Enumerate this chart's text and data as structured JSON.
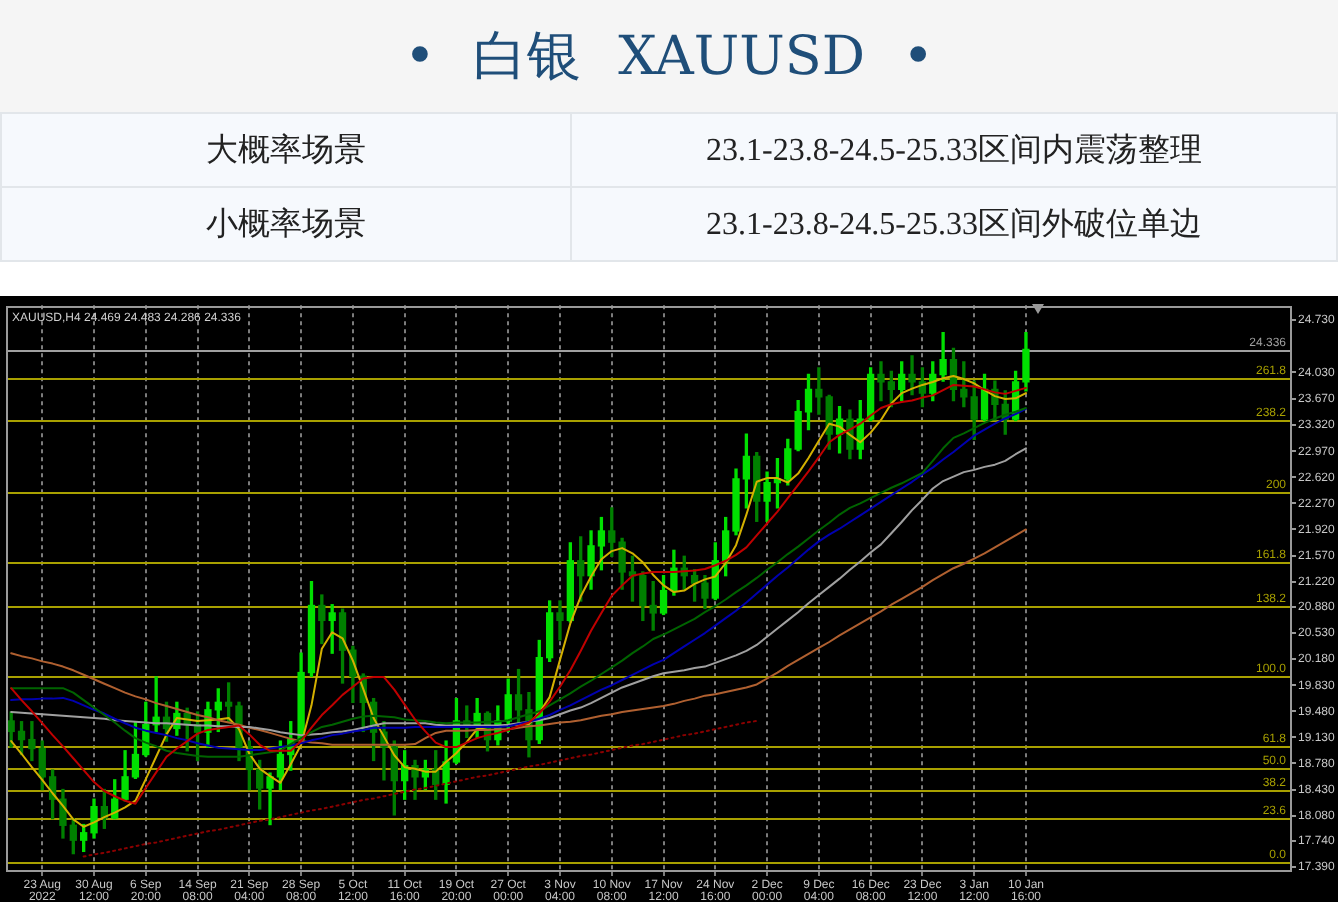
{
  "chart_data": [
    {
      "type": "other",
      "title": "• 白银 XAUUSD •",
      "annotations": [
        "大概率场景",
        "23.1-23.8-24.5-25.33区间内震荡整理",
        "小概率场景",
        "23.1-23.8-24.5-25.33区间外破位单边"
      ]
    },
    {
      "type": "candlestick",
      "categories": [
        null,
        null,
        null,
        "23 Aug 2022",
        null,
        null,
        null,
        null,
        "30 Aug 12:00",
        null,
        null,
        null,
        null,
        "6 Sep 20:00",
        null,
        null,
        null,
        null,
        "14 Sep 08:00",
        null,
        null,
        null,
        null,
        "21 Sep 04:00",
        null,
        null,
        null,
        null,
        "28 Sep 08:00",
        null,
        null,
        null,
        null,
        "5 Oct 12:00",
        null,
        null,
        null,
        null,
        "11 Oct 16:00",
        null,
        null,
        null,
        null,
        "19 Oct 20:00",
        null,
        null,
        null,
        null,
        "27 Oct 00:00",
        null,
        null,
        null,
        null,
        "3 Nov 04:00",
        null,
        null,
        null,
        null,
        "10 Nov 08:00",
        null,
        null,
        null,
        null,
        "17 Nov 12:00",
        null,
        null,
        null,
        null,
        "24 Nov 16:00",
        null,
        null,
        null,
        null,
        "2 Dec 00:00",
        null,
        null,
        null,
        null,
        "9 Dec 04:00",
        null,
        null,
        null,
        null,
        "16 Dec 08:00",
        null,
        null,
        null,
        null,
        "23 Dec 12:00",
        null,
        null,
        null,
        null,
        "3 Jan 12:00",
        null,
        null,
        null,
        null,
        "10 Jan 16:00",
        null,
        null,
        null,
        null,
        null,
        null,
        null,
        null,
        null,
        null,
        null,
        null,
        null,
        null,
        null,
        null,
        null,
        null,
        null,
        null,
        null,
        null,
        null,
        null,
        null
      ],
      "ohlc": [
        [
          19.35,
          19.47,
          19.0,
          19.21
        ],
        [
          19.21,
          19.34,
          18.9,
          19.1
        ],
        [
          19.1,
          19.34,
          18.82,
          18.98
        ],
        [
          18.98,
          19.08,
          18.43,
          18.6
        ],
        [
          18.6,
          18.69,
          18.04,
          18.3
        ],
        [
          18.3,
          18.43,
          17.78,
          17.95
        ],
        [
          17.95,
          18.04,
          17.57,
          17.75
        ],
        [
          17.75,
          17.96,
          17.6,
          17.85
        ],
        [
          17.85,
          18.3,
          17.78,
          18.2
        ],
        [
          18.2,
          18.43,
          17.91,
          18.05
        ],
        [
          18.05,
          18.56,
          18.04,
          18.3
        ],
        [
          18.3,
          18.95,
          18.28,
          18.6
        ],
        [
          18.6,
          19.34,
          18.58,
          18.9
        ],
        [
          18.9,
          19.6,
          18.88,
          19.3
        ],
        [
          19.3,
          19.94,
          19.21,
          19.4
        ],
        [
          19.4,
          19.6,
          19.08,
          19.25
        ],
        [
          19.25,
          19.6,
          19.16,
          19.45
        ],
        [
          19.45,
          19.52,
          18.95,
          19.3
        ],
        [
          19.3,
          19.47,
          18.82,
          19.2
        ],
        [
          19.2,
          19.6,
          19.0,
          19.5
        ],
        [
          19.5,
          19.78,
          19.21,
          19.6
        ],
        [
          19.6,
          19.86,
          19.34,
          19.55
        ],
        [
          19.55,
          19.6,
          18.82,
          19.0
        ],
        [
          19.0,
          19.08,
          18.43,
          18.7
        ],
        [
          18.7,
          18.82,
          18.17,
          18.45
        ],
        [
          18.45,
          18.65,
          17.96,
          18.6
        ],
        [
          18.6,
          19.08,
          18.43,
          18.9
        ],
        [
          18.9,
          19.34,
          18.69,
          19.1
        ],
        [
          19.1,
          20.26,
          19.08,
          20.0
        ],
        [
          20.0,
          21.22,
          19.95,
          20.9
        ],
        [
          20.9,
          21.04,
          20.39,
          20.7
        ],
        [
          20.7,
          20.91,
          20.26,
          20.8
        ],
        [
          20.8,
          20.85,
          19.86,
          20.3
        ],
        [
          20.3,
          20.35,
          19.6,
          19.95
        ],
        [
          19.95,
          19.98,
          19.21,
          19.6
        ],
        [
          19.6,
          19.65,
          18.82,
          19.2
        ],
        [
          19.2,
          19.34,
          18.56,
          19.0
        ],
        [
          19.0,
          19.08,
          18.09,
          18.55
        ],
        [
          18.55,
          18.95,
          18.3,
          18.75
        ],
        [
          18.75,
          18.82,
          18.3,
          18.6
        ],
        [
          18.6,
          18.82,
          18.43,
          18.7
        ],
        [
          18.7,
          18.95,
          18.3,
          18.5
        ],
        [
          18.5,
          19.08,
          18.25,
          18.8
        ],
        [
          18.8,
          19.65,
          18.78,
          19.35
        ],
        [
          19.35,
          19.55,
          19.13,
          19.3
        ],
        [
          19.3,
          19.65,
          19.13,
          19.45
        ],
        [
          19.45,
          19.47,
          18.95,
          19.1
        ],
        [
          19.1,
          19.55,
          19.03,
          19.35
        ],
        [
          19.35,
          19.91,
          19.21,
          19.7
        ],
        [
          19.7,
          20.04,
          19.29,
          19.5
        ],
        [
          19.5,
          19.73,
          18.87,
          19.1
        ],
        [
          19.1,
          20.43,
          19.05,
          20.2
        ],
        [
          20.2,
          20.96,
          20.15,
          20.8
        ],
        [
          20.8,
          20.96,
          20.44,
          20.7
        ],
        [
          20.7,
          21.74,
          20.68,
          21.5
        ],
        [
          21.5,
          21.82,
          20.96,
          21.3
        ],
        [
          21.3,
          21.9,
          21.12,
          21.7
        ],
        [
          21.7,
          22.08,
          21.38,
          21.9
        ],
        [
          21.9,
          22.21,
          21.56,
          21.75
        ],
        [
          21.75,
          21.8,
          21.12,
          21.35
        ],
        [
          21.35,
          21.56,
          20.96,
          21.3
        ],
        [
          21.3,
          21.35,
          20.7,
          20.9
        ],
        [
          20.9,
          21.22,
          20.57,
          20.8
        ],
        [
          20.8,
          21.3,
          20.78,
          21.1
        ],
        [
          21.1,
          21.64,
          21.04,
          21.4
        ],
        [
          21.4,
          21.56,
          21.12,
          21.3
        ],
        [
          21.3,
          21.38,
          20.96,
          21.2
        ],
        [
          21.2,
          21.3,
          20.86,
          21.0
        ],
        [
          21.0,
          21.74,
          20.98,
          21.5
        ],
        [
          21.5,
          22.08,
          21.3,
          21.9
        ],
        [
          21.9,
          22.73,
          21.85,
          22.6
        ],
        [
          22.6,
          23.2,
          22.21,
          22.9
        ],
        [
          22.9,
          22.95,
          22.03,
          22.3
        ],
        [
          22.3,
          22.69,
          22.03,
          22.55
        ],
        [
          22.55,
          22.87,
          22.21,
          22.6
        ],
        [
          22.6,
          23.13,
          22.52,
          23.0
        ],
        [
          23.0,
          23.65,
          22.98,
          23.5
        ],
        [
          23.5,
          24.0,
          23.26,
          23.8
        ],
        [
          23.8,
          24.09,
          23.47,
          23.7
        ],
        [
          23.7,
          23.72,
          23.0,
          23.2
        ],
        [
          23.2,
          23.57,
          22.95,
          23.4
        ],
        [
          23.4,
          23.52,
          22.87,
          23.0
        ],
        [
          23.0,
          23.65,
          22.87,
          23.4
        ],
        [
          23.4,
          24.09,
          23.38,
          24.0
        ],
        [
          24.0,
          24.17,
          23.65,
          23.9
        ],
        [
          23.9,
          24.04,
          23.57,
          23.8
        ],
        [
          23.8,
          24.17,
          23.65,
          24.0
        ],
        [
          24.0,
          24.25,
          23.73,
          23.9
        ],
        [
          23.9,
          24.09,
          23.57,
          23.75
        ],
        [
          23.75,
          24.17,
          23.65,
          24.0
        ],
        [
          24.0,
          24.56,
          23.91,
          24.2
        ],
        [
          24.2,
          24.35,
          23.65,
          23.8
        ],
        [
          23.8,
          24.17,
          23.57,
          23.7
        ],
        [
          23.7,
          23.91,
          23.13,
          23.4
        ],
        [
          23.4,
          24.0,
          23.38,
          23.8
        ],
        [
          23.8,
          23.91,
          23.39,
          23.6
        ],
        [
          23.6,
          23.78,
          23.2,
          23.4
        ],
        [
          23.4,
          24.04,
          23.38,
          23.9
        ],
        [
          23.9,
          24.56,
          23.78,
          24.336
        ],
        null,
        null,
        null,
        null,
        null,
        null,
        null,
        null,
        null,
        null,
        null,
        null,
        null,
        null,
        null,
        null,
        null,
        null,
        null,
        null,
        null,
        null,
        null,
        null,
        null
      ],
      "colors": [
        "#008000",
        "#008000",
        "#008000",
        "#008000",
        "#008000",
        "#008000",
        "#008000",
        "#00e000",
        "#00e000",
        "#008000",
        "#00e000",
        "#00e000",
        "#00e000",
        "#00e000",
        "#00e000",
        "#008000",
        "#00e000",
        "#008000",
        "#008000",
        "#00e000",
        "#00e000",
        "#008000",
        "#008000",
        "#008000",
        "#008000",
        "#00e000",
        "#00e000",
        "#00e000",
        "#00e000",
        "#00e000",
        "#008000",
        "#00e000",
        "#008000",
        "#008000",
        "#008000",
        "#008000",
        "#008000",
        "#008000",
        "#00e000",
        "#008000",
        "#00e000",
        "#008000",
        "#00e000",
        "#00e000",
        "#008000",
        "#00e000",
        "#008000",
        "#00e000",
        "#00e000",
        "#008000",
        "#008000",
        "#00e000",
        "#00e000",
        "#008000",
        "#00e000",
        "#008000",
        "#00e000",
        "#00e000",
        "#008000",
        "#008000",
        "#008000",
        "#008000",
        "#008000",
        "#00e000",
        "#00e000",
        "#008000",
        "#008000",
        "#008000",
        "#00e000",
        "#00e000",
        "#00e000",
        "#00e000",
        "#008000",
        "#00e000",
        "#00e000",
        "#00e000",
        "#00e000",
        "#00e000",
        "#008000",
        "#008000",
        "#00e000",
        "#008000",
        "#00e000",
        "#00e000",
        "#008000",
        "#008000",
        "#00e000",
        "#008000",
        "#008000",
        "#00e000",
        "#00e000",
        "#008000",
        "#008000",
        "#008000",
        "#00e000",
        "#008000",
        "#008000",
        "#00e000",
        "#00e000",
        null,
        null,
        null,
        null,
        null,
        null,
        null,
        null,
        null,
        null,
        null,
        null,
        null,
        null,
        null,
        null,
        null,
        null,
        null,
        null,
        null,
        null,
        null,
        null,
        null
      ],
      "series": [
        {
          "type": "line",
          "color": "#c00000",
          "values": [
            19.79,
            19.63,
            19.48,
            19.32,
            19.16,
            19.01,
            18.85,
            18.69,
            18.53,
            18.41,
            18.34,
            18.28,
            18.24,
            18.45,
            18.66,
            18.87,
            18.98,
            19.08,
            19.18,
            19.23,
            19.25,
            19.27,
            19.29,
            19.17,
            19.03,
            18.95,
            18.95,
            18.95,
            19.08,
            19.26,
            19.43,
            19.56,
            19.7,
            19.81,
            19.92,
            19.94,
            19.94,
            19.77,
            19.57,
            19.37,
            19.21,
            19.06,
            19.0,
            19.0,
            19.06,
            19.12,
            19.16,
            19.19,
            19.23,
            19.28,
            19.33,
            19.45,
            19.61,
            19.81,
            20.03,
            20.29,
            20.56,
            20.8,
            21.03,
            21.17,
            21.3,
            21.33,
            21.35,
            21.35,
            21.35,
            21.36,
            21.37,
            21.39,
            21.44,
            21.5,
            21.58,
            21.68,
            21.84,
            22.0,
            22.16,
            22.34,
            22.52,
            22.7,
            22.89,
            23.09,
            23.19,
            23.26,
            23.34,
            23.45,
            23.55,
            23.6,
            23.63,
            23.65,
            23.69,
            23.72,
            23.79,
            23.86,
            23.85,
            23.84,
            23.8,
            23.76,
            23.74,
            23.78,
            23.82,
            null,
            null,
            null,
            null,
            null,
            null,
            null,
            null,
            null,
            null,
            null,
            null,
            null,
            null,
            null,
            null,
            null,
            null,
            null,
            null,
            null,
            null,
            null,
            null,
            null
          ]
        },
        {
          "type": "line",
          "color": "#006400",
          "values": [
            19.79,
            19.79,
            19.79,
            19.79,
            19.79,
            19.79,
            19.73,
            19.63,
            19.53,
            19.43,
            19.33,
            19.22,
            19.12,
            19.06,
            19.01,
            18.95,
            18.92,
            18.9,
            18.88,
            18.87,
            18.87,
            18.87,
            18.87,
            18.89,
            18.91,
            18.93,
            18.95,
            19.04,
            19.12,
            19.2,
            19.27,
            19.3,
            19.34,
            19.38,
            19.41,
            19.42,
            19.41,
            19.4,
            19.37,
            19.36,
            19.35,
            19.33,
            19.32,
            19.33,
            19.33,
            19.33,
            19.34,
            19.34,
            19.36,
            19.4,
            19.44,
            19.48,
            19.56,
            19.64,
            19.72,
            19.81,
            19.89,
            19.98,
            20.07,
            20.16,
            20.26,
            20.35,
            20.45,
            20.51,
            20.58,
            20.65,
            20.72,
            20.81,
            20.89,
            20.98,
            21.08,
            21.17,
            21.27,
            21.38,
            21.48,
            21.59,
            21.69,
            21.8,
            21.91,
            22.01,
            22.12,
            22.21,
            22.27,
            22.34,
            22.41,
            22.48,
            22.54,
            22.61,
            22.68,
            22.84,
            23.01,
            23.15,
            23.21,
            23.28,
            23.35,
            23.41,
            23.46,
            23.5,
            23.55,
            null,
            null,
            null,
            null,
            null,
            null,
            null,
            null,
            null,
            null,
            null,
            null,
            null,
            null,
            null,
            null,
            null,
            null,
            null,
            null,
            null,
            null,
            null,
            null,
            null
          ]
        },
        {
          "type": "line",
          "color": "#0000b0",
          "values": [
            19.63,
            19.64,
            19.64,
            19.65,
            19.65,
            19.66,
            19.62,
            19.56,
            19.5,
            19.45,
            19.38,
            19.32,
            19.26,
            19.22,
            19.19,
            19.16,
            19.12,
            19.09,
            19.05,
            19.02,
            18.99,
            18.98,
            18.97,
            18.96,
            18.96,
            18.98,
            19.0,
            19.02,
            19.05,
            19.09,
            19.12,
            19.16,
            19.18,
            19.21,
            19.23,
            19.26,
            19.26,
            19.26,
            19.26,
            19.27,
            19.27,
            19.27,
            19.27,
            19.27,
            19.27,
            19.27,
            19.27,
            19.27,
            19.28,
            19.31,
            19.34,
            19.38,
            19.43,
            19.5,
            19.56,
            19.63,
            19.7,
            19.77,
            19.83,
            19.9,
            19.97,
            20.04,
            20.11,
            20.17,
            20.26,
            20.35,
            20.44,
            20.53,
            20.63,
            20.73,
            20.83,
            20.94,
            21.06,
            21.18,
            21.3,
            21.41,
            21.53,
            21.65,
            21.76,
            21.85,
            21.93,
            22.02,
            22.11,
            22.2,
            22.29,
            22.38,
            22.47,
            22.56,
            22.66,
            22.75,
            22.86,
            22.96,
            23.07,
            23.18,
            23.26,
            23.34,
            23.41,
            23.47,
            23.54,
            null,
            null,
            null,
            null,
            null,
            null,
            null,
            null,
            null,
            null,
            null,
            null,
            null,
            null,
            null,
            null,
            null,
            null,
            null,
            null,
            null,
            null,
            null,
            null,
            null
          ]
        },
        {
          "type": "line",
          "color": "#a0a0a0",
          "values": [
            19.47,
            19.46,
            19.45,
            19.44,
            19.43,
            19.42,
            19.41,
            19.4,
            19.39,
            19.38,
            19.36,
            19.35,
            19.34,
            19.33,
            19.32,
            19.32,
            19.31,
            19.3,
            19.29,
            19.29,
            19.28,
            19.28,
            19.27,
            19.27,
            19.25,
            19.23,
            19.2,
            19.18,
            19.16,
            19.17,
            19.18,
            19.2,
            19.21,
            19.23,
            19.26,
            19.29,
            19.32,
            19.32,
            19.32,
            19.32,
            19.32,
            19.3,
            19.29,
            19.29,
            19.29,
            19.29,
            19.29,
            19.29,
            19.3,
            19.32,
            19.34,
            19.36,
            19.39,
            19.44,
            19.49,
            19.53,
            19.59,
            19.66,
            19.73,
            19.8,
            19.85,
            19.9,
            19.95,
            19.99,
            20.01,
            20.03,
            20.06,
            20.08,
            20.13,
            20.18,
            20.23,
            20.29,
            20.37,
            20.48,
            20.59,
            20.7,
            20.81,
            20.93,
            21.04,
            21.15,
            21.26,
            21.38,
            21.49,
            21.61,
            21.72,
            21.87,
            22.02,
            22.18,
            22.32,
            22.47,
            22.57,
            22.63,
            22.69,
            22.72,
            22.76,
            22.79,
            22.84,
            22.93,
            23.01,
            null,
            null,
            null,
            null,
            null,
            null,
            null,
            null,
            null,
            null,
            null,
            null,
            null,
            null,
            null,
            null,
            null,
            null,
            null,
            null,
            null,
            null,
            null,
            null,
            null
          ]
        },
        {
          "type": "line",
          "color": "#b06030",
          "values": [
            20.26,
            20.22,
            20.19,
            20.15,
            20.12,
            20.08,
            20.03,
            19.97,
            19.91,
            19.85,
            19.79,
            19.73,
            19.68,
            19.64,
            19.59,
            19.55,
            19.51,
            19.47,
            19.43,
            19.4,
            19.36,
            19.33,
            19.3,
            19.26,
            19.23,
            19.19,
            19.15,
            19.11,
            19.08,
            19.06,
            19.05,
            19.03,
            19.03,
            19.03,
            19.03,
            19.03,
            19.03,
            19.03,
            19.03,
            19.04,
            19.12,
            19.19,
            19.22,
            19.22,
            19.22,
            19.23,
            19.23,
            19.24,
            19.24,
            19.26,
            19.28,
            19.29,
            19.31,
            19.33,
            19.34,
            19.36,
            19.39,
            19.42,
            19.44,
            19.47,
            19.49,
            19.51,
            19.53,
            19.55,
            19.58,
            19.62,
            19.65,
            19.69,
            19.71,
            19.74,
            19.77,
            19.8,
            19.84,
            19.92,
            20.0,
            20.09,
            20.17,
            20.25,
            20.33,
            20.41,
            20.5,
            20.58,
            20.66,
            20.74,
            20.82,
            20.91,
            20.99,
            21.07,
            21.15,
            21.24,
            21.32,
            21.4,
            21.46,
            21.53,
            21.6,
            21.68,
            21.76,
            21.84,
            21.92,
            null,
            null,
            null,
            null,
            null,
            null,
            null,
            null,
            null,
            null,
            null,
            null,
            null,
            null,
            null,
            null,
            null,
            null,
            null,
            null,
            null,
            null,
            null,
            null,
            null
          ]
        },
        {
          "type": "line",
          "color": "#d4b000",
          "values": [
            19.08,
            18.91,
            18.73,
            18.56,
            18.38,
            18.21,
            18.03,
            17.93,
            17.99,
            18.06,
            18.12,
            18.19,
            18.28,
            18.57,
            18.87,
            19.17,
            19.39,
            19.37,
            19.35,
            19.36,
            19.37,
            19.39,
            19.24,
            18.91,
            18.71,
            18.61,
            18.52,
            18.77,
            19.03,
            19.56,
            20.32,
            20.54,
            20.46,
            20.16,
            19.78,
            19.39,
            19.14,
            18.89,
            18.73,
            18.71,
            18.67,
            18.67,
            18.8,
            18.92,
            19.07,
            19.24,
            19.27,
            19.28,
            19.29,
            19.3,
            19.31,
            19.46,
            19.67,
            20.17,
            20.66,
            21.02,
            21.29,
            21.52,
            21.63,
            21.67,
            21.6,
            21.48,
            21.31,
            21.17,
            21.08,
            21.1,
            21.19,
            21.25,
            21.29,
            21.47,
            21.71,
            22.12,
            22.56,
            22.61,
            22.61,
            22.55,
            22.67,
            22.88,
            23.11,
            23.34,
            23.3,
            23.19,
            23.09,
            23.22,
            23.39,
            23.61,
            23.75,
            23.81,
            23.86,
            23.9,
            23.95,
            23.98,
            23.94,
            23.88,
            23.79,
            23.71,
            23.67,
            23.68,
            23.75,
            null,
            null,
            null,
            null,
            null,
            null,
            null,
            null,
            null,
            null,
            null,
            null,
            null,
            null,
            null,
            null,
            null,
            null,
            null,
            null,
            null,
            null,
            null,
            null,
            null
          ]
        },
        {
          "type": "line",
          "color": "#8b0000",
          "line_style": "dotted",
          "values": [
            null,
            null,
            null,
            null,
            null,
            null,
            null,
            17.53,
            17.56,
            17.58,
            17.61,
            17.64,
            17.67,
            17.7,
            17.72,
            17.75,
            17.78,
            17.81,
            17.84,
            17.87,
            17.89,
            17.92,
            17.95,
            17.98,
            18.01,
            18.03,
            18.06,
            18.09,
            18.12,
            18.15,
            18.17,
            18.2,
            18.23,
            18.26,
            18.29,
            18.31,
            18.34,
            18.37,
            18.4,
            18.43,
            18.45,
            18.48,
            18.51,
            18.54,
            18.57,
            18.6,
            18.62,
            18.65,
            18.68,
            18.71,
            18.74,
            18.76,
            18.79,
            18.82,
            18.85,
            18.88,
            18.9,
            18.93,
            18.96,
            18.99,
            19.02,
            19.04,
            19.07,
            19.1,
            19.13,
            19.16,
            19.18,
            19.21,
            19.24,
            19.27,
            19.3,
            19.33,
            19.35,
            null,
            null,
            null,
            null,
            null,
            null,
            null,
            null,
            null,
            null,
            null,
            null,
            null,
            null,
            null,
            null,
            null,
            null,
            null,
            null,
            null,
            null,
            null,
            null,
            null,
            null,
            null,
            null,
            null,
            null,
            null,
            null,
            null,
            null,
            null,
            null,
            null,
            null,
            null,
            null,
            null,
            null,
            null,
            null,
            null,
            null,
            null,
            null,
            null,
            null,
            null
          ]
        }
      ],
      "ylim": [
        17.35,
        24.93
      ],
      "yticks": [
        {
          "value": 24.73,
          "label": "24.730"
        },
        {
          "value": 24.03,
          "label": "24.030"
        },
        {
          "value": 23.67,
          "label": "23.670"
        },
        {
          "value": 23.32,
          "label": "23.320"
        },
        {
          "value": 22.97,
          "label": "22.970"
        },
        {
          "value": 22.62,
          "label": "22.620"
        },
        {
          "value": 22.27,
          "label": "22.270"
        },
        {
          "value": 21.92,
          "label": "21.920"
        },
        {
          "value": 21.57,
          "label": "21.570"
        },
        {
          "value": 21.22,
          "label": "21.220"
        },
        {
          "value": 20.88,
          "label": "20.880"
        },
        {
          "value": 20.53,
          "label": "20.530"
        },
        {
          "value": 20.18,
          "label": "20.180"
        },
        {
          "value": 19.83,
          "label": "19.830"
        },
        {
          "value": 19.48,
          "label": "19.480"
        },
        {
          "value": 19.13,
          "label": "19.130"
        },
        {
          "value": 18.78,
          "label": "18.780"
        },
        {
          "value": 18.43,
          "label": "18.430"
        },
        {
          "value": 18.08,
          "label": "18.080"
        },
        {
          "value": 17.74,
          "label": "17.740"
        },
        {
          "value": 17.39,
          "label": "17.390"
        }
      ],
      "y2lim": [
        -4.8,
        300.8
      ],
      "grid": "x",
      "ref_lines": [
        {
          "axis": "y",
          "value": 24.336,
          "label": "24.336",
          "color": "#a0a0a0"
        },
        {
          "axis": "y2",
          "value": 261.8,
          "label": "261.8",
          "color": "#a8a000"
        },
        {
          "axis": "y2",
          "value": 238.2,
          "label": "238.2",
          "color": "#a8a000"
        },
        {
          "axis": "y2",
          "value": 200,
          "label": "200",
          "color": "#a8a000"
        },
        {
          "axis": "y2",
          "value": 161.8,
          "label": "161.8",
          "color": "#a8a000"
        },
        {
          "axis": "y2",
          "value": 138.2,
          "label": "138.2",
          "color": "#a8a000"
        },
        {
          "axis": "y2",
          "value": 100,
          "label": "100.0",
          "color": "#a8a000"
        },
        {
          "axis": "y2",
          "value": 61.8,
          "label": "61.8",
          "color": "#a8a000"
        },
        {
          "axis": "y2",
          "value": 50,
          "label": "50.0",
          "color": "#a8a000"
        },
        {
          "axis": "y2",
          "value": 38.2,
          "label": "38.2",
          "color": "#a8a000"
        },
        {
          "axis": "y2",
          "value": 23.6,
          "label": "23.6",
          "color": "#a8a000"
        },
        {
          "axis": "y2",
          "value": 0,
          "label": "0.0",
          "color": "#a8a000"
        }
      ],
      "annotations": [
        "XAUUSD,H4 24.469 24.483 24.286 24.336"
      ]
    }
  ]
}
